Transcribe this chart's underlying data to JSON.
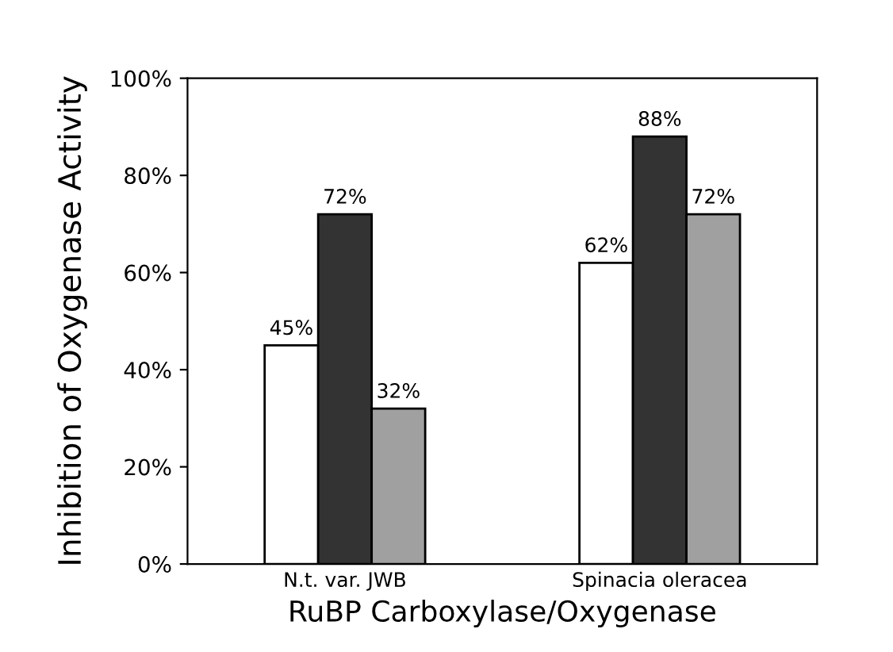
{
  "chart_data": {
    "type": "bar",
    "xlabel": "RuBP Carboxylase/Oxygenase",
    "ylabel": "Inhibition of Oxygenase Activity",
    "categories": [
      "N.t. var. JWB",
      "Spinacia oleracea"
    ],
    "series": [
      {
        "color": "#ffffff",
        "values": [
          45,
          62
        ],
        "value_labels": [
          "45%",
          "62%"
        ]
      },
      {
        "color": "#333333",
        "values": [
          72,
          88
        ],
        "value_labels": [
          "72%",
          "88%"
        ]
      },
      {
        "color": "#a0a0a0",
        "values": [
          32,
          72
        ],
        "value_labels": [
          "32%",
          "72%"
        ]
      }
    ],
    "ylim": [
      0,
      100
    ],
    "yticks": [
      {
        "value": 0,
        "label": "0%"
      },
      {
        "value": 20,
        "label": "20%"
      },
      {
        "value": 40,
        "label": "40%"
      },
      {
        "value": 60,
        "label": "60%"
      },
      {
        "value": 80,
        "label": "80%"
      },
      {
        "value": 100,
        "label": "100%"
      }
    ],
    "grid": false,
    "legend": false
  }
}
